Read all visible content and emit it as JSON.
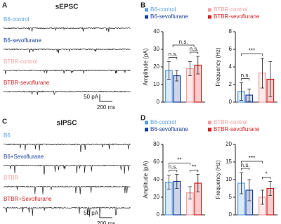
{
  "trace_panels": [
    {
      "letter": "A",
      "title": "sEPSC",
      "traces": [
        {
          "label": "B6-control",
          "color": "#5aa0e0"
        },
        {
          "label": "B6-sevoflurane",
          "color": "#1a3fa0"
        },
        {
          "label": "BTBR-control",
          "color": "#f2a0a0"
        },
        {
          "label": "BTBR-sevoflurane",
          "color": "#d82020"
        }
      ],
      "scale": {
        "y_label": "50 pA",
        "x_label": "200 ms"
      }
    },
    {
      "letter": "C",
      "title": "sIPSC",
      "traces": [
        {
          "label": "B6",
          "color": "#5aa0e0"
        },
        {
          "label": "B6+Sevoflurane",
          "color": "#1a3fa0"
        },
        {
          "label": "BTBR",
          "color": "#f2a0a0"
        },
        {
          "label": "BTBR+Sevoflurane",
          "color": "#d82020"
        }
      ],
      "scale": {
        "y_label": "50 pA",
        "x_label": "200 ms"
      }
    }
  ],
  "chart_data": [
    {
      "type": "bar",
      "letter": "B",
      "categories": [
        "B6-control",
        "B6-sevoflurane",
        "BTBR-control",
        "BTBR-sevoflurane"
      ],
      "colors": [
        "#5aa0e0",
        "#1a3fa0",
        "#f2a0a0",
        "#d82020"
      ],
      "panels": [
        {
          "ylabel": "Amplitude (pA)",
          "ylim": [
            0,
            40
          ],
          "yticks": [
            0,
            10,
            20,
            30,
            40
          ],
          "values": [
            18,
            15,
            19,
            21
          ],
          "errors": [
            5,
            3,
            4,
            5
          ],
          "annotations": [
            {
              "label": "n.s.",
              "between": [
                0,
                1
              ]
            },
            {
              "label": "n.s.",
              "between": [
                2,
                3
              ]
            },
            {
              "label": "n.s.",
              "between": [
                [
                  0,
                  1
                ],
                [
                  2,
                  3
                ]
              ]
            }
          ]
        },
        {
          "ylabel": "Frequency (Hz)",
          "ylim": [
            0,
            8
          ],
          "yticks": [
            0,
            2,
            4,
            6,
            8
          ],
          "values": [
            1.2,
            0.8,
            3.3,
            2.6
          ],
          "errors": [
            1,
            0.7,
            1.7,
            2
          ],
          "annotations": [
            {
              "label": "n.s.",
              "between": [
                0,
                1
              ]
            },
            {
              "label": "***",
              "between": [
                0,
                2
              ]
            }
          ]
        }
      ]
    },
    {
      "type": "bar",
      "letter": "D",
      "categories": [
        "B6-control",
        "B6-sevoflurane",
        "BTBR-control",
        "BTBR-sevoflurane"
      ],
      "colors": [
        "#5aa0e0",
        "#1a3fa0",
        "#f2a0a0",
        "#d82020"
      ],
      "panels": [
        {
          "ylabel": "Amplitude (pA)",
          "ylim": [
            0,
            80
          ],
          "yticks": [
            0,
            20,
            40,
            60,
            80
          ],
          "values": [
            37,
            38,
            25,
            36
          ],
          "errors": [
            8,
            8,
            7,
            10
          ],
          "annotations": [
            {
              "label": "n.s.",
              "between": [
                0,
                1
              ]
            },
            {
              "label": "**",
              "between": [
                2,
                3
              ]
            },
            {
              "label": "**",
              "between": [
                0,
                2
              ]
            }
          ]
        },
        {
          "ylabel": "Frequency (Hz)",
          "ylim": [
            0,
            20
          ],
          "yticks": [
            0,
            5,
            10,
            15,
            20
          ],
          "values": [
            9,
            7,
            5,
            7.5
          ],
          "errors": [
            3,
            3,
            2,
            2
          ],
          "annotations": [
            {
              "label": "n.s.",
              "between": [
                0,
                1
              ]
            },
            {
              "label": "*",
              "between": [
                2,
                3
              ]
            },
            {
              "label": "***",
              "between": [
                0,
                2
              ]
            }
          ]
        }
      ]
    }
  ]
}
